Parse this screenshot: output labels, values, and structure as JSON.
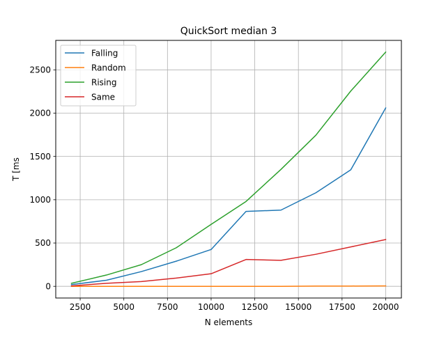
{
  "chart_data": {
    "type": "line",
    "title": "QuickSort median 3",
    "xlabel": "N elements",
    "ylabel": "T [ms",
    "x": [
      2000,
      4000,
      6000,
      8000,
      10000,
      12000,
      14000,
      16000,
      18000,
      20000
    ],
    "xlim": [
      1100,
      20900
    ],
    "ylim": [
      -135,
      2840
    ],
    "xticks": [
      2500,
      5000,
      7500,
      10000,
      12500,
      15000,
      17500,
      20000
    ],
    "yticks": [
      0,
      500,
      1000,
      1500,
      2000,
      2500
    ],
    "grid": true,
    "legend": "top-left",
    "series": [
      {
        "name": "Falling",
        "color": "#1f77b4",
        "values": [
          20,
          70,
          170,
          290,
          425,
          865,
          880,
          1080,
          1345,
          2060
        ]
      },
      {
        "name": "Random",
        "color": "#ff7f0e",
        "values": [
          0,
          0,
          0,
          0,
          0,
          0,
          0,
          3,
          3,
          5
        ]
      },
      {
        "name": "Rising",
        "color": "#2ca02c",
        "values": [
          35,
          130,
          250,
          445,
          715,
          980,
          1350,
          1745,
          2255,
          2705
        ]
      },
      {
        "name": "Same",
        "color": "#d62728",
        "values": [
          5,
          35,
          55,
          95,
          145,
          310,
          300,
          370,
          455,
          540
        ]
      }
    ]
  }
}
